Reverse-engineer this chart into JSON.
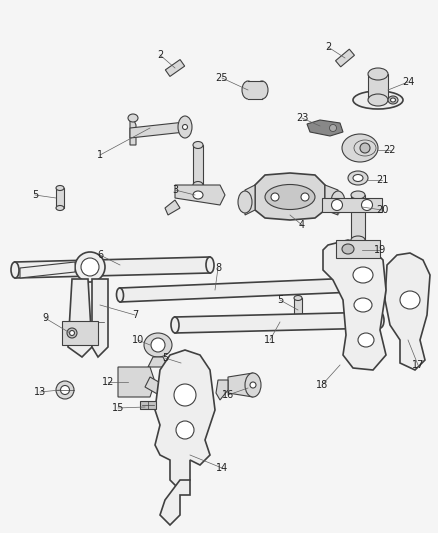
{
  "bg_color": "#f5f5f5",
  "line_color": "#404040",
  "text_color": "#222222",
  "fig_width": 4.38,
  "fig_height": 5.33,
  "dpi": 100,
  "label_fontsize": 7.0,
  "lw_thick": 1.2,
  "lw_med": 0.8,
  "lw_thin": 0.5,
  "part_face": "#d8d8d8",
  "part_face2": "#eeeeee",
  "part_face3": "#c0c0c0"
}
